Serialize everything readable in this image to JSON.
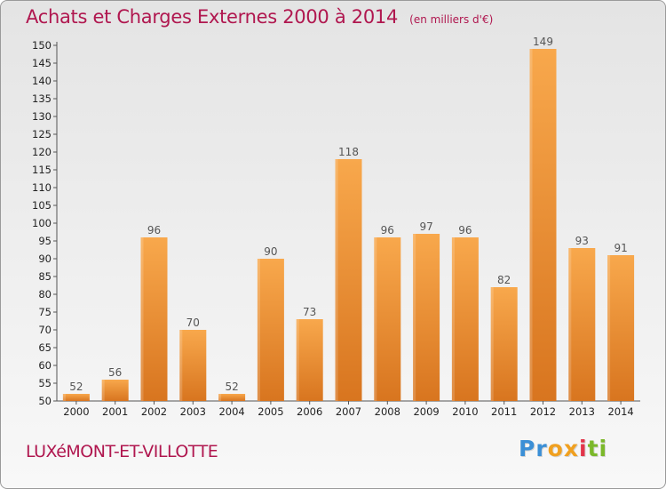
{
  "title": "Achats et Charges Externes 2000 à 2014",
  "unit_note": "(en milliers d'€)",
  "commune": "LUXéMONT-ET-VILLOTTE",
  "logo": {
    "letters": [
      "P",
      "r",
      "o",
      "x",
      "i",
      "t",
      "i"
    ],
    "colors": [
      "#3b8fd6",
      "#3b8fd6",
      "#f0a020",
      "#f0a020",
      "#e2354a",
      "#7bb82a",
      "#7bb82a"
    ]
  },
  "colors": {
    "bar_light": "#f8a84c",
    "bar_dark": "#d8751f",
    "title": "#b0174f"
  },
  "chart_data": {
    "type": "bar",
    "categories": [
      "2000",
      "2001",
      "2002",
      "2003",
      "2004",
      "2005",
      "2006",
      "2007",
      "2008",
      "2009",
      "2010",
      "2011",
      "2012",
      "2013",
      "2014"
    ],
    "values": [
      52,
      56,
      96,
      70,
      52,
      90,
      73,
      118,
      96,
      97,
      96,
      82,
      149,
      93,
      91
    ],
    "ylim": [
      50,
      150
    ],
    "yticks": [
      50,
      55,
      60,
      65,
      70,
      75,
      80,
      85,
      90,
      95,
      100,
      105,
      110,
      115,
      120,
      125,
      130,
      135,
      140,
      145,
      150
    ],
    "grid": false,
    "data_labels": true
  }
}
